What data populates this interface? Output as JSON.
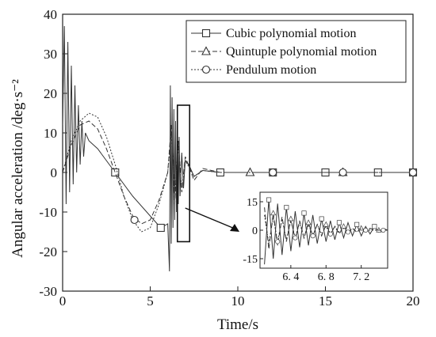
{
  "chart_data": [
    {
      "type": "line",
      "xlabel": "Time/s",
      "ylabel": "Angular acceleration /deg·s⁻²",
      "xlim": [
        0,
        20
      ],
      "ylim": [
        -30,
        40
      ],
      "xticks": [
        "0",
        "5",
        "10",
        "15",
        "20"
      ],
      "yticks": [
        "-30",
        "-20",
        "-10",
        "0",
        "10",
        "20",
        "30",
        "40"
      ],
      "legend_position": "top-right",
      "series": [
        {
          "name": "Cubic polynomial motion",
          "style": "solid",
          "marker": "square",
          "x": [
            0,
            0.1,
            0.2,
            0.3,
            0.4,
            0.5,
            0.6,
            0.7,
            0.8,
            0.9,
            1.0,
            1.1,
            1.2,
            1.3,
            1.5,
            2.0,
            3.0,
            4.0,
            5.0,
            5.6,
            6.0,
            6.1,
            6.15,
            6.2,
            6.25,
            6.3,
            6.35,
            6.4,
            6.45,
            6.5,
            6.55,
            6.6,
            6.65,
            6.7,
            6.8,
            6.9,
            7.0,
            7.2,
            7.5,
            8.0,
            9.0,
            10,
            12,
            15,
            18,
            20
          ],
          "y": [
            12,
            37,
            -8,
            33,
            -5,
            27,
            -3,
            22,
            0,
            17,
            2,
            13,
            4,
            10,
            8,
            6,
            0,
            -6,
            -11,
            -14,
            -13,
            -25,
            22,
            -18,
            19,
            -14,
            16,
            -12,
            13,
            -10,
            11,
            -8,
            9,
            -6,
            5,
            -4,
            3,
            2,
            -1,
            0.5,
            0,
            0,
            0,
            0,
            0,
            0
          ],
          "marker_x": [
            3,
            5.6,
            9,
            12,
            15,
            18,
            20
          ],
          "marker_y": [
            0,
            -14,
            0,
            0,
            0,
            0,
            0
          ]
        },
        {
          "name": "Quintuple polynomial motion",
          "style": "dashed",
          "marker": "triangle",
          "x": [
            0,
            0.5,
            1.0,
            1.5,
            2.0,
            2.5,
            3.0,
            3.5,
            4.0,
            4.5,
            5.0,
            5.5,
            6.0,
            6.2,
            6.4,
            6.6,
            6.8,
            7.0,
            7.5,
            8.0,
            9.0,
            10.7,
            13,
            16,
            20
          ],
          "y": [
            0,
            7,
            12,
            13,
            11,
            6,
            0,
            -6,
            -11,
            -13,
            -12,
            -7,
            0,
            12,
            -8,
            8,
            -5,
            4,
            -2,
            1,
            0,
            0,
            0,
            0,
            0
          ],
          "marker_x": [
            10.7,
            16
          ],
          "marker_y": [
            0,
            0
          ]
        },
        {
          "name": "Pendulum motion",
          "style": "dotted",
          "marker": "circle",
          "x": [
            0,
            0.5,
            1.0,
            1.5,
            2.0,
            2.5,
            3.0,
            3.5,
            4.0,
            4.5,
            5.0,
            5.5,
            6.0,
            6.2,
            6.4,
            6.6,
            6.8,
            7.0,
            7.5,
            8.0,
            9.0,
            12,
            16,
            20
          ],
          "y": [
            0,
            8,
            13,
            15,
            14,
            9,
            2,
            -6,
            -12,
            -15,
            -14,
            -8,
            0,
            10,
            -7,
            7,
            -4,
            3,
            -1,
            0.5,
            0,
            0,
            0,
            0
          ],
          "marker_x": [
            4.1,
            12,
            16,
            20
          ],
          "marker_y": [
            -12,
            0,
            0,
            0
          ]
        }
      ]
    },
    {
      "type": "line",
      "xlim": [
        6.05,
        7.5
      ],
      "ylim": [
        -20,
        20
      ],
      "xticks": [
        "6. 4",
        "6. 8",
        "7. 2"
      ],
      "yticks": [
        "15",
        "0",
        "-15"
      ],
      "series": [
        {
          "name": "Cubic polynomial motion",
          "x": [
            6.1,
            6.15,
            6.2,
            6.25,
            6.3,
            6.35,
            6.4,
            6.45,
            6.5,
            6.55,
            6.6,
            6.65,
            6.7,
            6.75,
            6.8,
            6.85,
            6.9,
            6.95,
            7.0,
            7.05,
            7.1,
            7.15,
            7.2,
            7.25,
            7.3,
            7.35,
            7.4,
            7.45,
            7.5
          ],
          "y": [
            -18,
            16,
            -15,
            14,
            -13,
            12,
            -11,
            10,
            -9,
            9,
            -8,
            8,
            -7,
            6,
            -6,
            5,
            -5,
            4,
            -4,
            4,
            -3,
            3,
            -3,
            2,
            -2,
            2,
            -1,
            1,
            0
          ]
        },
        {
          "name": "Quintuple polynomial motion",
          "x": [
            6.1,
            6.15,
            6.2,
            6.25,
            6.3,
            6.35,
            6.4,
            6.45,
            6.5,
            6.55,
            6.6,
            6.65,
            6.7,
            6.75,
            6.8,
            6.85,
            6.9,
            6.95,
            7.0,
            7.05,
            7.1,
            7.15,
            7.2,
            7.25,
            7.3,
            7.35,
            7.4,
            7.45,
            7.5
          ],
          "y": [
            12,
            -10,
            9,
            -8,
            7,
            -6,
            6,
            -5,
            5,
            -4,
            4,
            -3,
            3,
            -3,
            3,
            -2,
            2,
            -2,
            2,
            -1,
            1,
            -1,
            1,
            -1,
            1,
            0,
            0,
            0,
            0
          ]
        },
        {
          "name": "Pendulum motion",
          "x": [
            6.1,
            6.15,
            6.2,
            6.25,
            6.3,
            6.35,
            6.4,
            6.45,
            6.5,
            6.55,
            6.6,
            6.65,
            6.7,
            6.75,
            6.8,
            6.85,
            6.9,
            6.95,
            7.0,
            7.05,
            7.1,
            7.15,
            7.2,
            7.25,
            7.3,
            7.35,
            7.4,
            7.45,
            7.5
          ],
          "y": [
            8,
            -7,
            7,
            -6,
            6,
            -5,
            5,
            -4,
            4,
            -4,
            3,
            -3,
            3,
            -2,
            2,
            -2,
            2,
            -1,
            1,
            -1,
            1,
            -1,
            1,
            0,
            0,
            0,
            0,
            0,
            0
          ]
        }
      ]
    }
  ]
}
